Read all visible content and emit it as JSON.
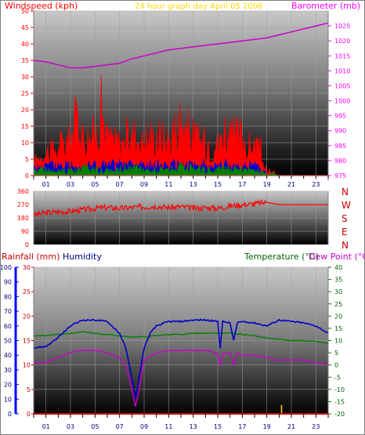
{
  "header": {
    "windspeed_label": "Windspeed (kph)",
    "subtitle": "24 hour graph day   April 05 2006",
    "barometer_label": "Barometer (mb)"
  },
  "colors": {
    "windspeed": "#ff0000",
    "gust": "#ff0000",
    "avg_wind": "#0000cc",
    "wind_green": "#008000",
    "barometer": "#cc00cc",
    "direction": "#ff0000",
    "rainfall": "#cc0000",
    "humidity": "#0000cc",
    "temperature": "#008000",
    "dewpoint": "#cc00cc",
    "title_yellow": "#ffff00",
    "rain_bar": "#ffcc00"
  },
  "footer_labels": {
    "rainfall": "Rainfall (mm)",
    "humidity": "Humidity",
    "temperature": "Temperature (°C)",
    "dewpoint": "Dew Point (°C)"
  },
  "chart_data": [
    {
      "type": "line",
      "name": "wind-barometer",
      "x_ticks": [
        "01",
        "03",
        "05",
        "07",
        "09",
        "11",
        "13",
        "15",
        "17",
        "19",
        "21",
        "23"
      ],
      "ylim": [
        0,
        50
      ],
      "yticks": [
        0,
        5,
        10,
        15,
        20,
        25,
        30,
        35,
        40,
        45,
        50
      ],
      "y2lim": [
        975,
        1030
      ],
      "y2ticks": [
        975,
        980,
        985,
        990,
        995,
        1000,
        1005,
        1010,
        1015,
        1020,
        1025
      ],
      "series": [
        {
          "name": "Windspeed (kph)",
          "hours": [
            0,
            1,
            2,
            3,
            3.5,
            4,
            5,
            5.5,
            6,
            7,
            8,
            9,
            10,
            11,
            12,
            13,
            14,
            15,
            15.5,
            16,
            17,
            17.5,
            18,
            18.5,
            19,
            20,
            21,
            22,
            23,
            24
          ],
          "values": [
            6,
            9,
            10,
            14,
            22,
            16,
            15,
            25,
            14,
            12,
            16,
            13,
            15,
            13,
            22,
            14,
            13,
            11,
            18,
            14,
            15,
            10,
            12,
            9,
            1,
            0,
            0,
            0,
            0,
            0
          ]
        },
        {
          "name": "avg",
          "hours": [
            0,
            2,
            4,
            6,
            8,
            10,
            12,
            14,
            16,
            18,
            19,
            20,
            24
          ],
          "values": [
            3,
            4,
            4,
            4,
            4,
            4,
            4,
            4,
            4,
            4,
            1,
            0,
            0
          ]
        },
        {
          "name": "green",
          "hours": [
            0,
            2,
            4,
            6,
            8,
            10,
            12,
            14,
            16,
            18,
            19,
            20,
            24
          ],
          "values": [
            2,
            2,
            3,
            2,
            3,
            2,
            3,
            2,
            3,
            2,
            1,
            0,
            0
          ]
        },
        {
          "name": "Barometer (mb)",
          "hours": [
            0,
            1,
            2,
            3,
            4,
            5,
            6,
            7,
            8,
            9,
            10,
            11,
            12,
            13,
            14,
            15,
            16,
            17,
            18,
            19,
            20,
            21,
            22,
            23,
            24
          ],
          "values": [
            1013.5,
            1013,
            1012,
            1011,
            1011,
            1011.5,
            1012,
            1012.5,
            1014,
            1015,
            1016,
            1017,
            1017.5,
            1018,
            1018.5,
            1019,
            1019.5,
            1020,
            1020.5,
            1021,
            1022,
            1023,
            1024,
            1025,
            1026
          ]
        }
      ]
    },
    {
      "type": "line",
      "name": "wind-direction",
      "ylim": [
        0,
        360
      ],
      "yticks": [
        0,
        90,
        180,
        270,
        360
      ],
      "compass": [
        "N",
        "W",
        "S",
        "E",
        "N"
      ],
      "series": [
        {
          "name": "direction",
          "hours": [
            0,
            1,
            2,
            3,
            4,
            5,
            6,
            7,
            8,
            9,
            10,
            11,
            12,
            13,
            14,
            15,
            16,
            17,
            18,
            18.5,
            19,
            20,
            21,
            22,
            23,
            24
          ],
          "values": [
            200,
            215,
            220,
            225,
            235,
            245,
            250,
            245,
            250,
            255,
            260,
            250,
            255,
            245,
            250,
            245,
            260,
            270,
            275,
            280,
            285,
            270,
            270,
            270,
            270,
            270
          ]
        }
      ]
    },
    {
      "type": "line",
      "name": "rain-humidity-temp",
      "x_ticks": [
        "01",
        "03",
        "05",
        "07",
        "09",
        "11",
        "13",
        "15",
        "17",
        "19",
        "21",
        "23"
      ],
      "humidity_ylim": [
        0,
        100
      ],
      "humidity_yticks": [
        0,
        10,
        20,
        30,
        40,
        50,
        60,
        70,
        80,
        90,
        100
      ],
      "rain_ylim": [
        0,
        30
      ],
      "rain_yticks": [
        0,
        5,
        10,
        15,
        20,
        25,
        30
      ],
      "temp_ylim": [
        -20,
        40
      ],
      "temp_yticks": [
        -20,
        -15,
        -10,
        -5,
        0,
        5,
        10,
        15,
        20,
        25,
        30,
        35,
        40
      ],
      "series": [
        {
          "name": "Humidity",
          "hours": [
            0,
            1,
            2,
            3,
            4,
            5,
            6,
            7,
            7.5,
            8,
            8.3,
            8.6,
            9,
            9.5,
            10,
            11,
            12,
            13,
            14,
            15,
            15.2,
            15.4,
            16,
            16.3,
            16.6,
            17,
            18,
            19,
            20,
            21,
            22,
            23,
            24
          ],
          "values": [
            45,
            46,
            52,
            60,
            64,
            64,
            63,
            55,
            45,
            25,
            10,
            25,
            45,
            55,
            60,
            63,
            63,
            64,
            64,
            63,
            45,
            63,
            62,
            50,
            62,
            63,
            62,
            60,
            64,
            63,
            62,
            60,
            55
          ]
        },
        {
          "name": "Temperature (°C)",
          "hours": [
            0,
            1,
            2,
            3,
            4,
            5,
            6,
            7,
            8,
            9,
            10,
            11,
            12,
            13,
            14,
            15,
            16,
            17,
            18,
            19,
            20,
            21,
            22,
            23,
            24
          ],
          "values": [
            12,
            12,
            12.5,
            13,
            13.5,
            13,
            12.5,
            12,
            11.5,
            11.5,
            12,
            12.5,
            12.5,
            13,
            13,
            13,
            13,
            12.5,
            12,
            11,
            10.5,
            10,
            10,
            9.5,
            9
          ]
        },
        {
          "name": "Dew Point (°C)",
          "hours": [
            0,
            1,
            2,
            3,
            4,
            5,
            6,
            7,
            7.5,
            8,
            8.3,
            8.6,
            9,
            10,
            11,
            12,
            13,
            14,
            15,
            15.2,
            15.5,
            16,
            16.3,
            16.6,
            17,
            18,
            19,
            20,
            21,
            22,
            23,
            24
          ],
          "values": [
            1,
            1,
            3,
            5,
            6,
            6,
            5,
            3,
            0,
            -10,
            -17,
            -10,
            2,
            5,
            6,
            6,
            6,
            6,
            5,
            0,
            5,
            5,
            0,
            5,
            4,
            4,
            3,
            2,
            2,
            2,
            1,
            0
          ]
        },
        {
          "name": "Rainfall (mm)",
          "hours": [
            20.2
          ],
          "values": [
            1.8
          ]
        }
      ]
    }
  ]
}
